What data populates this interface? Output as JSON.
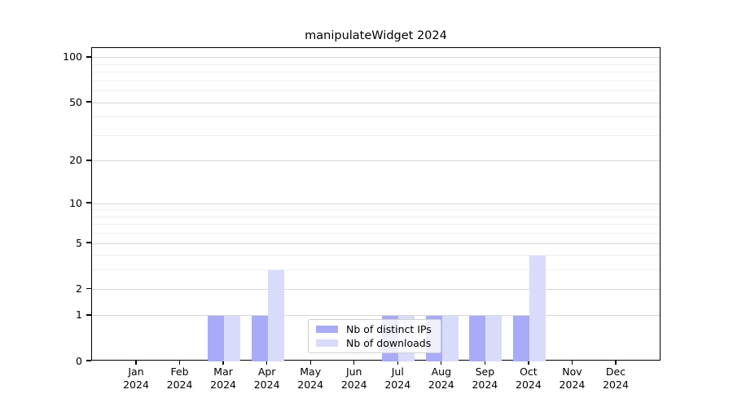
{
  "chart_data": {
    "type": "bar",
    "title": "manipulateWidget 2024",
    "categories": [
      "Jan",
      "Feb",
      "Mar",
      "Apr",
      "May",
      "Jun",
      "Jul",
      "Aug",
      "Sep",
      "Oct",
      "Nov",
      "Dec"
    ],
    "x_year": "2024",
    "series": [
      {
        "name": "Nb of distinct IPs",
        "color": "#a9abf6",
        "values": [
          0,
          0,
          1,
          1,
          0,
          0,
          1,
          1,
          1,
          1,
          0,
          0
        ]
      },
      {
        "name": "Nb of downloads",
        "color": "#d9dbfb",
        "values": [
          0,
          0,
          1,
          3,
          0,
          0,
          1,
          1,
          1,
          4,
          0,
          0
        ]
      }
    ],
    "yscale": "log1p",
    "y_ticks": [
      0,
      1,
      2,
      5,
      10,
      20,
      50,
      100
    ],
    "y_minor_gridlines": [
      3,
      4,
      6,
      7,
      8,
      9,
      30,
      40,
      60,
      70,
      80,
      90
    ],
    "ylim": [
      0,
      116
    ],
    "grid": "horizontal-major-and-minor",
    "legend_position": "inside-bottom-center"
  },
  "colors": {
    "grid_major": "#d7d7d7",
    "grid_minor": "#f0f0f0",
    "spine": "#000000",
    "background": "#ffffff"
  }
}
